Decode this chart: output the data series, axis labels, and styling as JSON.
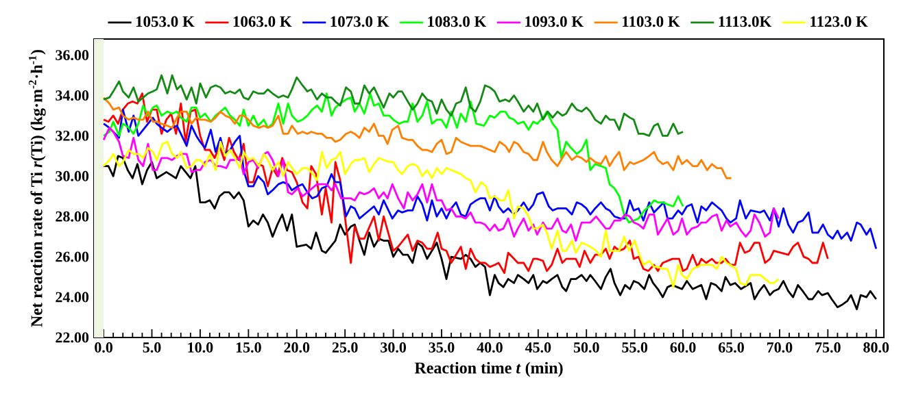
{
  "chart_data": {
    "type": "line",
    "xlabel": "Reaction time *t* (min)",
    "ylabel": "Net reaction rate of Ti *r*(Ti) (kg·m$^{-2}$·h$^{-1}$)",
    "xlim": [
      -1.0,
      80.8
    ],
    "ylim": [
      22,
      36.8
    ],
    "xticks": [
      {
        "value": 0,
        "label": "0.0"
      },
      {
        "value": 5,
        "label": "5.0"
      },
      {
        "value": 10,
        "label": "10.0"
      },
      {
        "value": 15,
        "label": "15.0"
      },
      {
        "value": 20,
        "label": "20.0"
      },
      {
        "value": 25,
        "label": "25.0"
      },
      {
        "value": 30,
        "label": "30.0"
      },
      {
        "value": 35,
        "label": "35.0"
      },
      {
        "value": 40,
        "label": "40.0"
      },
      {
        "value": 45,
        "label": "45.0"
      },
      {
        "value": 50,
        "label": "50.0"
      },
      {
        "value": 55,
        "label": "55.0"
      },
      {
        "value": 60,
        "label": "60.0"
      },
      {
        "value": 65,
        "label": "65.0"
      },
      {
        "value": 70,
        "label": "70.0"
      },
      {
        "value": 75,
        "label": "75.0"
      },
      {
        "value": 80,
        "label": "80.0"
      }
    ],
    "yticks": [
      {
        "value": 22,
        "label": "22.00"
      },
      {
        "value": 24,
        "label": "24.00"
      },
      {
        "value": 26,
        "label": "26.00"
      },
      {
        "value": 28,
        "label": "28.00"
      },
      {
        "value": 30,
        "label": "30.00"
      },
      {
        "value": 32,
        "label": "32.00"
      },
      {
        "value": 34,
        "label": "34.00"
      },
      {
        "value": 36,
        "label": "36.00"
      }
    ],
    "legend": "top",
    "bands": [
      {
        "axis": "x",
        "from": -1.0,
        "to": 0,
        "color": "#eef6e2"
      }
    ],
    "series": [
      {
        "name": "1053.0 K",
        "color": "#000000",
        "x": [
          0,
          0.5,
          1,
          1.5,
          2,
          2.5,
          3,
          3.5,
          4,
          4.5,
          5,
          5.5,
          6.5,
          7.5,
          8,
          9,
          9.5,
          10,
          10.5,
          11,
          11.5,
          12,
          12.5,
          13,
          13.5,
          14,
          14.5,
          15,
          15.5,
          16,
          16.5,
          17,
          17.5,
          18,
          18.5,
          19,
          19.5,
          20,
          21,
          21.5,
          22,
          22.6,
          23,
          24,
          24.5,
          25,
          25.6,
          26,
          26.5,
          27,
          27.5,
          28,
          28.5,
          29,
          29.5,
          30,
          30.5,
          31,
          31.5,
          32,
          32.5,
          33,
          33.5,
          34,
          34.5,
          35,
          35.5,
          36,
          37,
          37.5,
          38,
          38.5,
          39,
          39.5,
          40,
          40.5,
          40.9,
          41.4,
          41.9,
          42.5,
          42.9,
          43.5,
          44,
          44.5,
          44.9,
          45.5,
          45.9,
          46.4,
          47,
          47.5,
          47.9,
          48.4,
          48.9,
          49.5,
          50,
          50.4,
          50.9,
          51.5,
          52,
          52.5,
          52.9,
          53.5,
          54,
          54.5,
          54.9,
          55.4,
          56,
          56.5,
          56.9,
          57.4,
          57.9,
          58.4,
          58.9,
          59.4,
          59.9,
          60.4,
          61,
          61.9,
          62.4,
          62.9,
          63.4,
          64,
          64.4,
          64.9,
          65.4,
          66,
          67,
          67.4,
          67.9,
          68.4,
          69,
          69.4,
          69.9,
          70.4,
          70.9,
          71.4,
          71.9,
          72.4,
          73,
          73.4,
          74,
          74.4,
          75,
          75.4,
          76,
          76.4,
          77,
          77.4,
          78,
          78.4,
          79,
          79.4,
          80
        ],
        "values": [
          30.5,
          30.5,
          30.0,
          31.0,
          30.9,
          30.3,
          29.9,
          30.6,
          29.6,
          30.3,
          30.7,
          29.9,
          30.2,
          29.9,
          30.5,
          29.9,
          30.5,
          28.7,
          28.7,
          28.8,
          28.4,
          29.0,
          29.2,
          29.2,
          28.9,
          29.2,
          28.8,
          27.5,
          27.8,
          27.6,
          28.1,
          27.7,
          27.0,
          27.6,
          28.1,
          27.3,
          28.1,
          26.5,
          26.6,
          26.4,
          27.2,
          26.3,
          26.2,
          26.8,
          27.6,
          27.1,
          27.5,
          27.6,
          26.8,
          26.1,
          27.2,
          26.5,
          26.9,
          26.8,
          26.8,
          26.0,
          26.4,
          26.1,
          26.1,
          25.7,
          26.7,
          26.5,
          25.9,
          26.3,
          26.7,
          25.9,
          24.9,
          26.0,
          25.9,
          26.1,
          25.9,
          25.5,
          25.7,
          25.5,
          24.1,
          25.1,
          24.7,
          24.5,
          24.9,
          24.7,
          25.1,
          24.9,
          24.7,
          25.1,
          24.4,
          24.8,
          24.7,
          24.9,
          25.1,
          24.5,
          24.3,
          24.9,
          24.9,
          25.1,
          24.8,
          25.1,
          24.8,
          24.4,
          25.0,
          25.4,
          24.7,
          24.1,
          24.6,
          24.4,
          24.8,
          24.7,
          24.4,
          25.1,
          24.7,
          24.4,
          24.0,
          24.5,
          24.6,
          24.5,
          24.4,
          24.8,
          24.4,
          24.6,
          23.9,
          24.7,
          24.6,
          24.3,
          25.0,
          24.6,
          24.7,
          24.4,
          24.7,
          23.9,
          24.3,
          24.6,
          24.1,
          24.3,
          24.4,
          24.8,
          24.3,
          24.0,
          24.6,
          24.3,
          23.9,
          23.9,
          24.3,
          24.1,
          24.2,
          23.9,
          23.5,
          23.6,
          23.8,
          24.1,
          23.4,
          24.1,
          24.0,
          24.3,
          23.9
        ]
      },
      {
        "name": "1063.0 K",
        "color": "#ff0000",
        "x": [
          0,
          0.5,
          1,
          1.5,
          2,
          2.5,
          3,
          3.5,
          4,
          4.5,
          5,
          5.5,
          6,
          6.5,
          7,
          7.5,
          8,
          8.5,
          9,
          9.5,
          10,
          10.5,
          11,
          11.5,
          12,
          12.5,
          13,
          13.5,
          14,
          14.5,
          15,
          15.5,
          16,
          16.5,
          17,
          17.5,
          18,
          18.5,
          19,
          19.5,
          20,
          20.6,
          21.1,
          21.5,
          22,
          22.6,
          23,
          23.6,
          24,
          24.5,
          25.6,
          26,
          26.5,
          27,
          28,
          28.5,
          29,
          30,
          30.5,
          31.5,
          32,
          32.5,
          33,
          33.5,
          34,
          34.6,
          35,
          35.5,
          36,
          36.5,
          37,
          37.5,
          38,
          38.5,
          39,
          39.5,
          40,
          40.5,
          40.9,
          41.5,
          41.9,
          42.5,
          42.9,
          43.5,
          44,
          44.5,
          44.9,
          45.5,
          45.9,
          46.4,
          47,
          47.5,
          47.9,
          48.4,
          48.9,
          49.3,
          49.8,
          50.4,
          50.9,
          51.5,
          52,
          52.4,
          52.9,
          53.4,
          53.9,
          54.5,
          54.9,
          55.4,
          55.9,
          56.4,
          57,
          57.4,
          57.9,
          58.4,
          58.9,
          59.6,
          60,
          60.4,
          61,
          61.5,
          61.9,
          62.4,
          63,
          63.4,
          64,
          64.4,
          64.9,
          65.4,
          65.9,
          66.4,
          66.9,
          67.4,
          67.9,
          68.5,
          69,
          69.4,
          70.9,
          71.4,
          71.9,
          72.5,
          73,
          73.4,
          73.9,
          74.5,
          75
        ],
        "values": [
          32.8,
          32.7,
          33.0,
          32.6,
          33.3,
          33.6,
          33.7,
          33.6,
          34.1,
          32.7,
          33.3,
          33.3,
          32.1,
          32.8,
          33.1,
          32.1,
          33.6,
          31.7,
          33.2,
          33.3,
          32.0,
          31.3,
          31.3,
          30.9,
          31.5,
          30.8,
          31.9,
          31.2,
          30.8,
          31.6,
          29.7,
          29.7,
          30.6,
          30.5,
          29.5,
          30.4,
          30.0,
          30.9,
          30.3,
          30.2,
          29.7,
          28.7,
          28.4,
          30.5,
          30.1,
          28.1,
          29.4,
          27.7,
          30.7,
          29.8,
          25.7,
          27.5,
          26.9,
          26.9,
          28.0,
          26.8,
          28.0,
          26.3,
          26.5,
          27.1,
          26.3,
          26.8,
          26.7,
          26.4,
          26.4,
          27.2,
          26.4,
          26.3,
          25.7,
          26.1,
          26.5,
          25.4,
          26.4,
          25.9,
          25.7,
          25.7,
          25.5,
          25.6,
          25.7,
          25.2,
          26.2,
          25.9,
          25.7,
          25.7,
          25.3,
          25.9,
          25.9,
          25.8,
          25.3,
          25.6,
          26.4,
          25.7,
          25.9,
          25.9,
          25.9,
          25.5,
          26.3,
          25.7,
          26.1,
          26.1,
          26.4,
          25.9,
          26.5,
          26.3,
          26.4,
          26.8,
          25.9,
          26.0,
          25.4,
          25.3,
          25.6,
          25.3,
          25.7,
          25.8,
          25.9,
          25.9,
          25.3,
          25.4,
          26.1,
          25.5,
          25.9,
          25.7,
          25.9,
          25.7,
          25.7,
          25.9,
          25.6,
          25.6,
          26.7,
          26.2,
          26.3,
          26.7,
          26.7,
          25.7,
          25.9,
          26.3,
          26.1,
          26.5,
          26.7,
          26.0,
          25.9,
          25.7,
          25.7,
          26.7,
          25.9
        ]
      },
      {
        "name": "1073.0 K",
        "color": "#0000ff",
        "x": [
          0,
          0.6,
          1,
          1.6,
          2,
          2.6,
          3.1,
          3.6,
          4.1,
          4.6,
          5.1,
          5.5,
          6,
          6.6,
          7.1,
          7.6,
          8,
          8.6,
          9.1,
          9.6,
          10,
          10.5,
          11.1,
          11.6,
          12.1,
          12.5,
          13.1,
          13.6,
          14.1,
          14.5,
          15,
          15.5,
          16,
          16.6,
          17,
          17.5,
          18.1,
          18.6,
          19.1,
          19.5,
          20.1,
          20.6,
          21.1,
          21.6,
          22.1,
          22.6,
          23.1,
          23.6,
          24,
          24.5,
          25.1,
          25.6,
          26,
          26.5,
          27,
          27.5,
          28,
          28.5,
          29,
          29.4,
          29.9,
          30.5,
          30.9,
          31.5,
          32,
          32.5,
          33,
          33.5,
          34,
          34.5,
          35,
          35.5,
          36,
          36.5,
          37,
          37.5,
          38,
          38.6,
          39,
          39.5,
          40,
          40.5,
          40.9,
          41.4,
          41.9,
          42.5,
          42.9,
          43.5,
          44,
          44.5,
          44.9,
          45.5,
          46.1,
          46.5,
          47,
          47.9,
          48.5,
          49,
          49.5,
          50,
          50.4,
          50.9,
          51.5,
          52,
          52.4,
          52.9,
          53.5,
          54,
          54.5,
          54.9,
          55.4,
          55.9,
          56.5,
          57,
          57.4,
          58,
          58.4,
          58.9,
          59.5,
          59.9,
          60.4,
          60.9,
          61.5,
          61.9,
          62.4,
          63,
          63.5,
          64,
          64.5,
          64.9,
          65.5,
          65.9,
          66.5,
          67,
          68,
          68.4,
          69,
          69.4,
          69.9,
          70.4,
          70.9,
          71.4,
          71.9,
          72.4,
          73,
          73.4,
          74,
          74.5,
          75,
          75.5,
          76,
          76.4,
          77,
          77.4,
          78,
          78.4,
          79,
          79.4,
          80
        ],
        "values": [
          32.6,
          32.4,
          32.2,
          31.9,
          33.3,
          32.2,
          33.0,
          32.0,
          32.3,
          32.6,
          32.9,
          32.6,
          32.4,
          32.2,
          32.4,
          32.5,
          32.1,
          31.5,
          32.5,
          32.0,
          31.7,
          31.4,
          32.3,
          31.2,
          31.9,
          31.1,
          31.3,
          31.7,
          32.0,
          30.3,
          29.5,
          29.5,
          30.0,
          29.7,
          29.1,
          29.3,
          29.6,
          29.7,
          29.6,
          29.3,
          29.5,
          29.6,
          29.2,
          28.9,
          29.0,
          29.4,
          29.5,
          30.1,
          29.7,
          29.7,
          28.0,
          28.5,
          28.4,
          27.9,
          28.1,
          28.3,
          28.5,
          28.1,
          28.8,
          28.4,
          27.9,
          28.3,
          28.2,
          28.3,
          28.3,
          29.0,
          28.6,
          27.8,
          28.8,
          28.0,
          28.4,
          27.9,
          28.4,
          28.7,
          28.1,
          28.0,
          28.6,
          28.8,
          28.9,
          28.9,
          28.3,
          29.0,
          28.5,
          28.2,
          28.4,
          28.1,
          28.3,
          28.7,
          28.3,
          28.6,
          29.1,
          29.2,
          28.5,
          28.3,
          28.4,
          28.4,
          28.1,
          28.7,
          28.6,
          28.4,
          28.1,
          28.4,
          28.7,
          28.4,
          28.3,
          28.0,
          27.9,
          27.9,
          28.8,
          28.3,
          28.4,
          27.8,
          28.7,
          28.2,
          28.4,
          28.7,
          27.9,
          27.9,
          28.3,
          28.1,
          28.5,
          28.6,
          27.7,
          28.5,
          28.3,
          28.7,
          28.5,
          28.3,
          27.9,
          27.7,
          27.9,
          28.8,
          27.9,
          28.3,
          28.2,
          28.3,
          27.8,
          28.4,
          27.5,
          28.4,
          27.6,
          27.2,
          27.7,
          27.8,
          28.2,
          27.2,
          27.2,
          27.6,
          27.1,
          26.9,
          27.3,
          26.9,
          27.2,
          26.8,
          27.7,
          27.6,
          27.1,
          27.4,
          26.4
        ]
      },
      {
        "name": "1083.0 K",
        "color": "#00ff00",
        "x": [
          0,
          0.6,
          1,
          1.6,
          2,
          2.6,
          3.1,
          3.6,
          4.1,
          4.6,
          5.1,
          5.5,
          6,
          6.6,
          7.1,
          7.6,
          8,
          8.6,
          9.1,
          9.6,
          10,
          10.5,
          11.1,
          11.6,
          12.1,
          12.6,
          13.1,
          13.6,
          14.1,
          14.5,
          15,
          15.5,
          16,
          16.6,
          17,
          17.5,
          18.1,
          18.6,
          19.1,
          19.5,
          20.1,
          20.6,
          21.1,
          21.6,
          22.1,
          22.6,
          23.1,
          23.6,
          24,
          24.5,
          25.1,
          25.6,
          26,
          26.5,
          27,
          27.6,
          28,
          28.5,
          29,
          29.6,
          30,
          30.6,
          31.1,
          31.5,
          32,
          32.5,
          33,
          33.5,
          34,
          34.5,
          35,
          35.5,
          36,
          36.6,
          37,
          37.5,
          38,
          38.6,
          39.4,
          40,
          40.5,
          41.1,
          41.6,
          42,
          42.5,
          42.9,
          43.5,
          44,
          44.5,
          44.9,
          45.5,
          45.9,
          46.5,
          47,
          47.4,
          47.9,
          48.4,
          49,
          49.5,
          50,
          50.4,
          50.9,
          51.5,
          52,
          52.4,
          52.9,
          53.4,
          53.9,
          54.4,
          54.9,
          55.4,
          56,
          56.5,
          57,
          57.4,
          57.9,
          58.4,
          59,
          59.5,
          60
        ],
        "values": [
          32.0,
          32.2,
          32.7,
          32.0,
          32.6,
          32.4,
          32.1,
          32.6,
          33.5,
          33.0,
          33.4,
          33.5,
          33.0,
          33.2,
          33.1,
          33.2,
          32.9,
          32.7,
          33.4,
          33.4,
          32.9,
          33.1,
          32.7,
          33.0,
          33.2,
          33.4,
          33.0,
          32.8,
          32.5,
          33.3,
          32.5,
          33.0,
          32.5,
          32.8,
          32.4,
          32.6,
          33.6,
          32.6,
          33.6,
          33.0,
          32.7,
          32.8,
          33.0,
          33.3,
          33.5,
          33.2,
          34.1,
          33.0,
          33.4,
          33.6,
          33.8,
          33.9,
          33.2,
          33.6,
          33.1,
          34.1,
          33.5,
          33.6,
          33.0,
          33.0,
          32.8,
          32.6,
          32.7,
          32.7,
          33.6,
          32.7,
          33.0,
          33.7,
          32.6,
          32.8,
          32.8,
          32.4,
          33.2,
          32.4,
          33.1,
          32.7,
          33.7,
          32.6,
          32.5,
          33.0,
          32.9,
          33.2,
          33.2,
          32.9,
          32.8,
          32.6,
          32.7,
          32.3,
          32.7,
          32.6,
          32.9,
          33.2,
          32.6,
          32.3,
          30.9,
          31.7,
          31.4,
          31.1,
          31.3,
          31.8,
          30.3,
          30.6,
          30.5,
          30.4,
          29.6,
          29.4,
          29.0,
          28.1,
          27.7,
          27.8,
          27.9,
          28.3,
          28.5,
          28.8,
          28.7,
          28.7,
          28.6,
          28.5,
          29.0,
          28.5
        ]
      },
      {
        "name": "1093.0 K",
        "color": "#ff00ff",
        "x": [
          0,
          0.6,
          1,
          1.6,
          2,
          2.6,
          3.1,
          3.6,
          4.1,
          4.6,
          5.1,
          5.5,
          6,
          6.6,
          7.1,
          7.6,
          8,
          8.6,
          9.1,
          9.6,
          10,
          10.5,
          11.1,
          11.6,
          12.1,
          12.7,
          13.1,
          13.6,
          14.1,
          14.5,
          15,
          15.5,
          16,
          16.6,
          17,
          17.5,
          18.1,
          18.6,
          19.1,
          19.5,
          20.1,
          20.6,
          21.1,
          21.6,
          22.1,
          22.6,
          23.1,
          23.6,
          24,
          24.6,
          25.1,
          25.6,
          26,
          26.5,
          27,
          27.5,
          28,
          28.5,
          29,
          29.4,
          29.9,
          30.5,
          31.1,
          31.5,
          32,
          32.5,
          33,
          33.5,
          34,
          34.5,
          35,
          35.5,
          36,
          36.5,
          37,
          37.5,
          38,
          38.5,
          39,
          39.5,
          40,
          40.5,
          40.9,
          41.4,
          41.9,
          42.5,
          42.9,
          43.5,
          44,
          44.5,
          44.9,
          45.5,
          45.9,
          46.4,
          47,
          47.5,
          47.9,
          48.4,
          48.9,
          49.5,
          50,
          50.4,
          51,
          51.5,
          52,
          52.4,
          52.9,
          53.5,
          54,
          54.5,
          54.9,
          55.4,
          55.9,
          56.5,
          57,
          57.4,
          57.9,
          58.4,
          59,
          59.5,
          59.9,
          60.4,
          60.9,
          61.5,
          61.9,
          62.4,
          63,
          63.5,
          64,
          64.5,
          64.9,
          65.5,
          66,
          66.5,
          67,
          67.4,
          67.9,
          68.5,
          69,
          69.4,
          69.9
        ],
        "values": [
          31.8,
          32.4,
          32.2,
          31.7,
          31.0,
          30.9,
          31.9,
          30.8,
          30.5,
          31.6,
          30.3,
          30.3,
          30.9,
          30.9,
          30.8,
          31.0,
          31.1,
          31.1,
          30.2,
          30.3,
          30.3,
          30.7,
          30.8,
          30.5,
          30.5,
          30.4,
          30.8,
          30.8,
          30.9,
          30.1,
          30.7,
          30.8,
          30.4,
          31.1,
          31.2,
          30.8,
          30.0,
          30.8,
          29.2,
          29.1,
          29.4,
          29.0,
          29.2,
          29.4,
          29.6,
          29.6,
          29.6,
          29.3,
          29.6,
          28.9,
          28.9,
          28.9,
          28.8,
          29.2,
          29.1,
          29.2,
          29.4,
          28.9,
          29.2,
          28.9,
          29.6,
          28.9,
          28.4,
          29.2,
          28.8,
          29.1,
          29.6,
          28.7,
          29.6,
          28.8,
          28.8,
          28.3,
          28.4,
          28.0,
          28.0,
          27.9,
          28.2,
          27.7,
          27.7,
          27.6,
          27.3,
          27.6,
          27.3,
          27.4,
          27.9,
          27.0,
          27.4,
          27.9,
          27.3,
          27.6,
          27.1,
          27.7,
          27.4,
          27.4,
          27.9,
          27.3,
          27.2,
          27.6,
          26.8,
          27.7,
          27.7,
          27.7,
          28.0,
          27.7,
          27.4,
          27.4,
          27.8,
          27.8,
          28.1,
          28.0,
          27.7,
          27.6,
          27.4,
          28.1,
          28.1,
          27.1,
          27.5,
          27.9,
          27.1,
          27.3,
          27.9,
          27.1,
          27.4,
          27.5,
          27.7,
          27.7,
          28.0,
          28.1,
          27.3,
          27.8,
          27.5,
          27.7,
          27.3,
          27.0,
          27.3,
          28.1,
          27.7,
          27.0,
          27.2,
          28.4,
          27.9
        ]
      },
      {
        "name": "1103.0 K",
        "color": "#ff8000",
        "x": [
          0,
          0.6,
          1,
          1.6,
          2,
          2.6,
          3.1,
          3.6,
          4.1,
          4.6,
          5.1,
          5.5,
          6,
          6.6,
          7.1,
          7.6,
          8,
          8.6,
          9.1,
          9.6,
          10,
          10.5,
          11.1,
          11.6,
          12.1,
          12.6,
          13.1,
          13.6,
          14.1,
          14.5,
          15,
          15.5,
          16.1,
          16.6,
          17,
          17.5,
          18.1,
          18.6,
          19.1,
          19.5,
          20.1,
          20.6,
          21.1,
          21.5,
          22.1,
          22.6,
          23.1,
          23.6,
          24,
          24.5,
          25.1,
          25.6,
          26,
          26.5,
          27,
          27.5,
          28,
          28.5,
          29,
          29.4,
          29.9,
          30.5,
          30.9,
          31.5,
          32,
          32.5,
          33,
          33.5,
          34,
          34.5,
          35,
          35.5,
          36,
          36.5,
          37,
          37.5,
          38,
          38.6,
          39,
          39.5,
          40,
          40.5,
          41,
          41.6,
          42,
          42.5,
          42.9,
          43.5,
          44,
          44.5,
          44.9,
          45.5,
          45.9,
          46.4,
          47,
          47.5,
          47.9,
          48.5,
          49,
          49.5,
          50,
          50.4,
          50.9,
          51.5,
          52,
          52.4,
          52.9,
          53.4,
          53.9,
          54.5,
          54.9,
          55.4,
          55.9,
          56.5,
          57,
          57.4,
          57.9,
          58.4,
          59,
          59.5,
          59.9,
          60.4,
          61,
          61.5,
          61.9,
          62.5,
          63,
          63.5,
          64,
          64.5,
          65
        ],
        "values": [
          33.9,
          33.6,
          33.3,
          33.4,
          33.0,
          32.8,
          32.9,
          32.8,
          32.8,
          33.2,
          32.7,
          32.7,
          32.6,
          32.5,
          32.4,
          32.9,
          33.2,
          33.2,
          32.6,
          32.9,
          32.8,
          32.8,
          32.7,
          32.9,
          33.2,
          33.0,
          32.9,
          32.6,
          33.0,
          33.0,
          32.8,
          32.5,
          32.4,
          32.5,
          32.4,
          32.5,
          33.0,
          32.1,
          32.1,
          32.5,
          32.1,
          32.2,
          32.1,
          32.2,
          32.1,
          32.1,
          31.9,
          31.9,
          31.7,
          31.8,
          32.1,
          32.2,
          32.1,
          31.9,
          32.4,
          32.2,
          32.6,
          32.0,
          32.0,
          31.6,
          32.3,
          32.5,
          31.9,
          31.8,
          31.8,
          31.5,
          31.3,
          31.3,
          31.2,
          31.6,
          31.8,
          31.1,
          31.2,
          31.9,
          31.7,
          31.6,
          31.5,
          31.5,
          31.5,
          31.4,
          31.3,
          31.2,
          31.7,
          31.5,
          31.2,
          31.7,
          31.6,
          31.2,
          31.1,
          30.8,
          30.8,
          31.7,
          31.2,
          30.8,
          30.5,
          30.9,
          31.2,
          30.8,
          31.0,
          30.9,
          30.7,
          30.9,
          30.7,
          30.6,
          31.0,
          30.5,
          30.9,
          31.2,
          30.3,
          30.7,
          30.6,
          30.7,
          30.8,
          31.0,
          31.2,
          30.8,
          30.6,
          30.7,
          30.3,
          31.0,
          30.6,
          30.8,
          30.5,
          30.5,
          30.8,
          30.3,
          30.6,
          30.4,
          30.4,
          29.9,
          29.9
        ]
      },
      {
        "name": "1113.0K",
        "color": "#138a13",
        "x": [
          0,
          0.6,
          1,
          1.6,
          2,
          2.6,
          3.1,
          3.6,
          4.1,
          4.6,
          5.1,
          5.5,
          6,
          6.6,
          7.1,
          7.6,
          8,
          8.6,
          9.1,
          9.6,
          10,
          10.6,
          11.1,
          11.6,
          12.1,
          12.6,
          13.1,
          13.6,
          14.1,
          14.5,
          15,
          15.5,
          16,
          16.6,
          17,
          17.5,
          18.1,
          18.6,
          19.1,
          19.5,
          20,
          20.6,
          21.1,
          21.5,
          22.1,
          22.6,
          23.1,
          23.6,
          24,
          24.5,
          25.1,
          25.6,
          26,
          26.5,
          27,
          27.5,
          28,
          28.5,
          29,
          29.6,
          30,
          30.5,
          30.9,
          31.5,
          32,
          32.5,
          33,
          33.5,
          34,
          34.5,
          35,
          35.5,
          36,
          36.5,
          37,
          37.5,
          38,
          38.5,
          39,
          39.5,
          40,
          40.5,
          41,
          41.6,
          42,
          42.5,
          42.9,
          43.5,
          44,
          44.5,
          44.9,
          45.5,
          46,
          46.5,
          47,
          47.5,
          47.9,
          48.5,
          49,
          49.5,
          50,
          50.4,
          50.9,
          51.5,
          52,
          52.4,
          52.9,
          53.4,
          53.9,
          54.5,
          54.9,
          55.4,
          55.9,
          56.5,
          57,
          57.4,
          57.9,
          58.4,
          59,
          59.5,
          60
        ],
        "values": [
          33.8,
          33.9,
          34.2,
          34.7,
          34.2,
          33.9,
          34.4,
          33.7,
          33.9,
          34.1,
          34.2,
          34.3,
          35.0,
          34.1,
          35.0,
          34.3,
          34.5,
          33.8,
          34.4,
          33.6,
          34.6,
          33.9,
          34.4,
          34.5,
          34.4,
          34.1,
          34.2,
          34.1,
          34.3,
          33.9,
          33.8,
          34.2,
          34.1,
          34.1,
          34.3,
          34.1,
          33.9,
          34.0,
          33.9,
          34.3,
          34.9,
          34.5,
          34.2,
          34.3,
          33.8,
          34.1,
          33.9,
          33.9,
          33.7,
          33.5,
          34.4,
          34.2,
          33.6,
          33.6,
          34.5,
          34.1,
          34.4,
          33.9,
          33.4,
          34.1,
          33.9,
          34.2,
          34.2,
          33.7,
          33.3,
          33.6,
          34.1,
          33.8,
          33.7,
          33.1,
          33.8,
          33.3,
          33.0,
          33.6,
          33.7,
          34.4,
          33.4,
          33.2,
          33.7,
          34.5,
          34.4,
          34.2,
          33.7,
          33.8,
          33.7,
          34.0,
          33.7,
          33.2,
          33.5,
          33.2,
          33.6,
          32.8,
          33.2,
          32.9,
          33.2,
          33.0,
          33.1,
          33.6,
          33.3,
          33.2,
          33.4,
          33.2,
          32.8,
          32.6,
          33.0,
          32.8,
          32.8,
          32.3,
          33.1,
          32.9,
          32.8,
          32.1,
          32.1,
          32.0,
          32.5,
          32.6,
          32.0,
          32.0,
          32.6,
          32.1,
          32.2
        ]
      },
      {
        "name": "1123.0 K",
        "color": "#ffff00",
        "x": [
          0,
          0.6,
          1,
          1.6,
          2,
          2.6,
          3.1,
          3.6,
          4.1,
          4.6,
          5.1,
          5.5,
          6.1,
          6.6,
          7.1,
          7.6,
          8,
          8.6,
          9.1,
          9.6,
          10,
          10.5,
          11,
          11.6,
          12.1,
          12.6,
          13.1,
          13.6,
          14.1,
          14.5,
          15,
          15.5,
          16.1,
          16.6,
          17,
          17.5,
          18.1,
          18.6,
          19.1,
          19.5,
          20,
          20.6,
          21.1,
          21.5,
          22.1,
          22.6,
          23.1,
          23.6,
          24.1,
          24.5,
          25,
          25.6,
          26,
          26.5,
          27,
          27.5,
          28,
          28.5,
          29,
          29.6,
          30,
          30.5,
          30.9,
          31.5,
          32,
          32.5,
          33,
          33.5,
          34,
          34.5,
          35,
          35.5,
          36,
          36.5,
          37,
          37.5,
          38,
          38.5,
          39.1,
          39.6,
          40,
          40.5,
          41,
          41.5,
          41.9,
          42.5,
          42.9,
          43.5,
          44,
          44.5,
          44.9,
          45.5,
          45.9,
          46.4,
          47,
          47.5,
          47.9,
          48.5,
          48.9,
          49.5,
          50,
          50.4,
          51,
          51.5,
          52,
          52.4,
          52.9,
          53.4,
          53.9,
          54.4,
          55,
          55.4,
          55.9,
          56.5,
          57,
          57.4,
          57.9,
          58.4,
          59,
          59.5,
          59.9,
          60.4,
          61,
          61.5,
          61.9,
          62.4,
          63,
          63.5,
          64,
          64.5,
          64.9,
          65.5,
          65.9,
          66.5,
          67,
          68,
          69,
          69.4,
          69.9
        ],
        "values": [
          30.5,
          30.8,
          31.1,
          30.5,
          30.7,
          31.3,
          31.1,
          31.1,
          30.9,
          31.4,
          31.2,
          30.8,
          31.6,
          31.7,
          31.1,
          30.9,
          31.2,
          30.4,
          30.5,
          30.8,
          30.8,
          30.5,
          31.1,
          30.3,
          31.7,
          31.0,
          31.3,
          30.9,
          30.4,
          31.2,
          30.8,
          30.9,
          30.5,
          31.1,
          30.8,
          30.3,
          30.7,
          30.0,
          30.7,
          30.4,
          30.1,
          30.4,
          30.4,
          30.2,
          29.8,
          31.2,
          30.4,
          30.8,
          30.9,
          31.2,
          30.1,
          30.6,
          30.8,
          30.8,
          30.9,
          30.2,
          30.6,
          30.9,
          30.8,
          30.7,
          30.7,
          30.3,
          30.1,
          30.5,
          30.6,
          30.5,
          30.0,
          30.3,
          29.9,
          30.4,
          30.1,
          30.4,
          30.3,
          30.2,
          30.1,
          29.9,
          29.8,
          29.2,
          29.7,
          29.5,
          28.9,
          29.0,
          28.8,
          28.8,
          29.3,
          27.9,
          28.5,
          28.4,
          28.0,
          27.4,
          27.4,
          27.6,
          27.2,
          26.4,
          27.3,
          26.3,
          26.3,
          26.8,
          26.2,
          26.7,
          26.6,
          26.5,
          26.3,
          26.0,
          27.3,
          26.3,
          26.3,
          26.3,
          27.0,
          26.3,
          26.8,
          26.2,
          25.6,
          25.8,
          25.5,
          25.5,
          25.4,
          25.4,
          24.5,
          25.6,
          25.1,
          24.9,
          25.4,
          25.5,
          25.6,
          25.6,
          25.6,
          25.4,
          26.0,
          25.7,
          25.6,
          25.4,
          24.7,
          24.6,
          25.1,
          25.1,
          24.7,
          24.7,
          24.9
        ]
      }
    ]
  }
}
